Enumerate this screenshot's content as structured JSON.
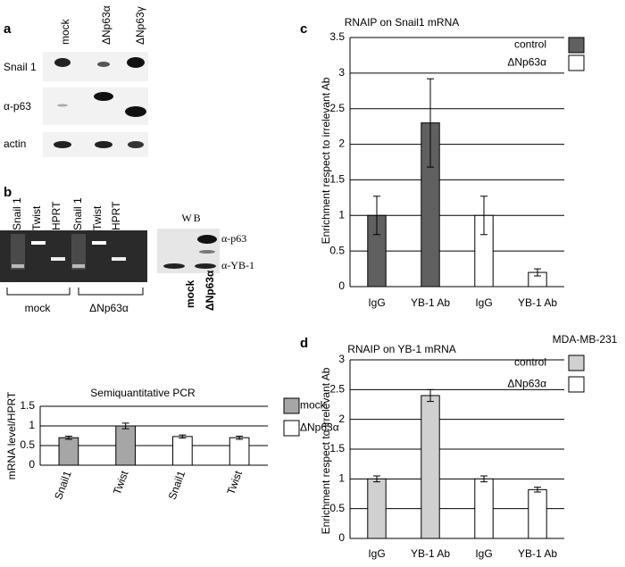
{
  "panel_letters": [
    "a",
    "b",
    "c",
    "d"
  ],
  "panel_a": {
    "lanes": [
      "mock",
      "ΔNp63α",
      "ΔNp63γ"
    ],
    "rows": [
      "Snail 1",
      "α-p63",
      "actin"
    ]
  },
  "panel_b": {
    "gel_lanes": [
      "Snail 1",
      "Twist",
      "HPRT",
      "Snail 1",
      "Twist",
      "HPRT"
    ],
    "gel_groups": [
      "mock",
      "ΔNp63α"
    ],
    "wb_title": "WB",
    "wb_bands": [
      "α-p63",
      "α-YB-1"
    ],
    "wb_lanes": [
      "mock",
      "ΔNp63α"
    ]
  },
  "chart_data": [
    {
      "type": "bar",
      "title": "Semiquantitative PCR",
      "y_label": "mRNA level/HPRT",
      "categories": [
        "Snail1",
        "Twist",
        "Snail1",
        "Twist"
      ],
      "series": [
        {
          "name": "mock",
          "color": "#a6a6a6",
          "values": [
            0.7,
            1.0,
            null,
            null
          ],
          "errors": [
            0.04,
            0.07,
            null,
            null
          ]
        },
        {
          "name": "ΔNp63α",
          "color": "#ffffff",
          "values": [
            null,
            null,
            0.73,
            0.7
          ],
          "errors": [
            null,
            null,
            0.04,
            0.04
          ]
        }
      ],
      "ylim": [
        0,
        1.5
      ],
      "yticks": [
        0,
        0.5,
        1,
        1.5
      ],
      "grid": true
    },
    {
      "type": "bar",
      "title": "RNAIP on Snail1 mRNA",
      "y_label": "Enrichment respect to irrelevant  Ab",
      "categories": [
        "IgG",
        "YB-1 Ab",
        "IgG",
        "YB-1 Ab"
      ],
      "series": [
        {
          "name": "control",
          "color": "#606060",
          "values": [
            1,
            2.3,
            null,
            null
          ],
          "errors": [
            0.27,
            0.62,
            null,
            null
          ]
        },
        {
          "name": "ΔNp63α",
          "color": "#ffffff",
          "values": [
            null,
            null,
            1,
            0.2
          ],
          "errors": [
            null,
            null,
            0.27,
            0.05
          ]
        }
      ],
      "ylim": [
        0,
        3.5
      ],
      "yticks": [
        0,
        0.5,
        1,
        1.5,
        2,
        2.5,
        3,
        3.5
      ],
      "grid": true
    },
    {
      "type": "bar",
      "title": "RNAIP on YB-1 mRNA",
      "annotation": "MDA-MB-231",
      "y_label": "Enrichment respect to irrelevant  Ab",
      "categories": [
        "IgG",
        "YB-1 Ab",
        "IgG",
        "YB-1 Ab"
      ],
      "series": [
        {
          "name": "control",
          "color": "#d0d0d0",
          "values": [
            1,
            2.4,
            null,
            null
          ],
          "errors": [
            0.05,
            0.1,
            null,
            null
          ]
        },
        {
          "name": "ΔNp63α",
          "color": "#ffffff",
          "values": [
            null,
            null,
            1,
            0.82
          ],
          "errors": [
            null,
            null,
            0.05,
            0.04
          ]
        }
      ],
      "ylim": [
        0,
        3
      ],
      "yticks": [
        0,
        0.5,
        1,
        1.5,
        2,
        2.5,
        3
      ],
      "grid": true
    }
  ]
}
